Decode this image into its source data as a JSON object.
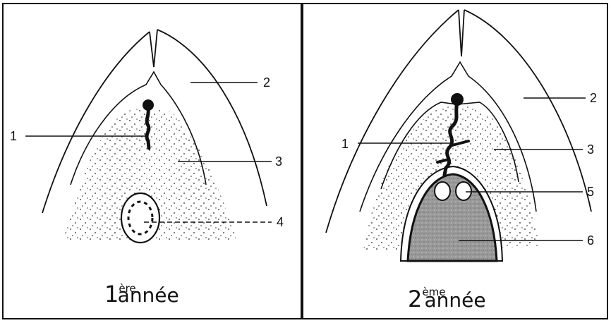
{
  "panels": [
    {
      "caption": {
        "number": "1",
        "superscript": "ère",
        "word": "année"
      },
      "labels": [
        "1",
        "2",
        "3",
        "4"
      ]
    },
    {
      "caption": {
        "number": "2",
        "superscript": "ème",
        "word": "année"
      },
      "labels": [
        "1",
        "2",
        "3",
        "5",
        "6"
      ]
    }
  ]
}
